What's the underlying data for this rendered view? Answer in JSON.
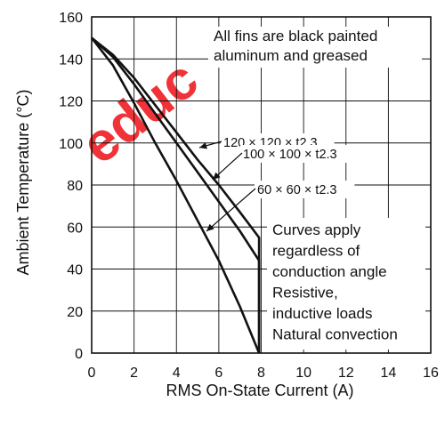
{
  "chart_data": {
    "type": "line",
    "title": "",
    "xlabel": "RMS On-State Current  (A)",
    "ylabel": "Ambient Temperature  (°C)",
    "xlim": [
      0,
      16
    ],
    "ylim": [
      0,
      160
    ],
    "xticks": [
      0,
      2,
      4,
      6,
      8,
      10,
      12,
      14,
      16
    ],
    "yticks": [
      0,
      20,
      40,
      60,
      80,
      100,
      120,
      140,
      160
    ],
    "grid": true,
    "series": [
      {
        "name": "120 × 120 × t2.3",
        "x": [
          0,
          1,
          2,
          3,
          4,
          5,
          6,
          7,
          7.9,
          7.9
        ],
        "y": [
          150,
          142,
          131,
          118,
          105,
          92,
          80,
          67,
          55,
          0
        ]
      },
      {
        "name": "100 × 100 × t2.3",
        "x": [
          0,
          1,
          2,
          3,
          4,
          5,
          6,
          7,
          7.9,
          7.9
        ],
        "y": [
          150,
          141,
          128,
          114,
          100,
          86,
          72,
          58,
          44,
          0
        ]
      },
      {
        "name": "60 × 60 × t2.3",
        "x": [
          0,
          1,
          2,
          3,
          4,
          5,
          6,
          7,
          7.9
        ],
        "y": [
          150,
          137,
          119,
          100,
          82,
          63,
          44,
          22,
          0
        ]
      }
    ],
    "annotations": [
      [
        "All fins are black painted",
        "aluminum and greased"
      ],
      [
        "Curves apply",
        "regardless of",
        "conduction angle",
        "Resistive,",
        "inductive loads",
        "Natural convection"
      ]
    ],
    "colors": {
      "curve": "#111111",
      "grid": "#111111",
      "watermark": "#ee1d23"
    },
    "watermark": "educ"
  }
}
